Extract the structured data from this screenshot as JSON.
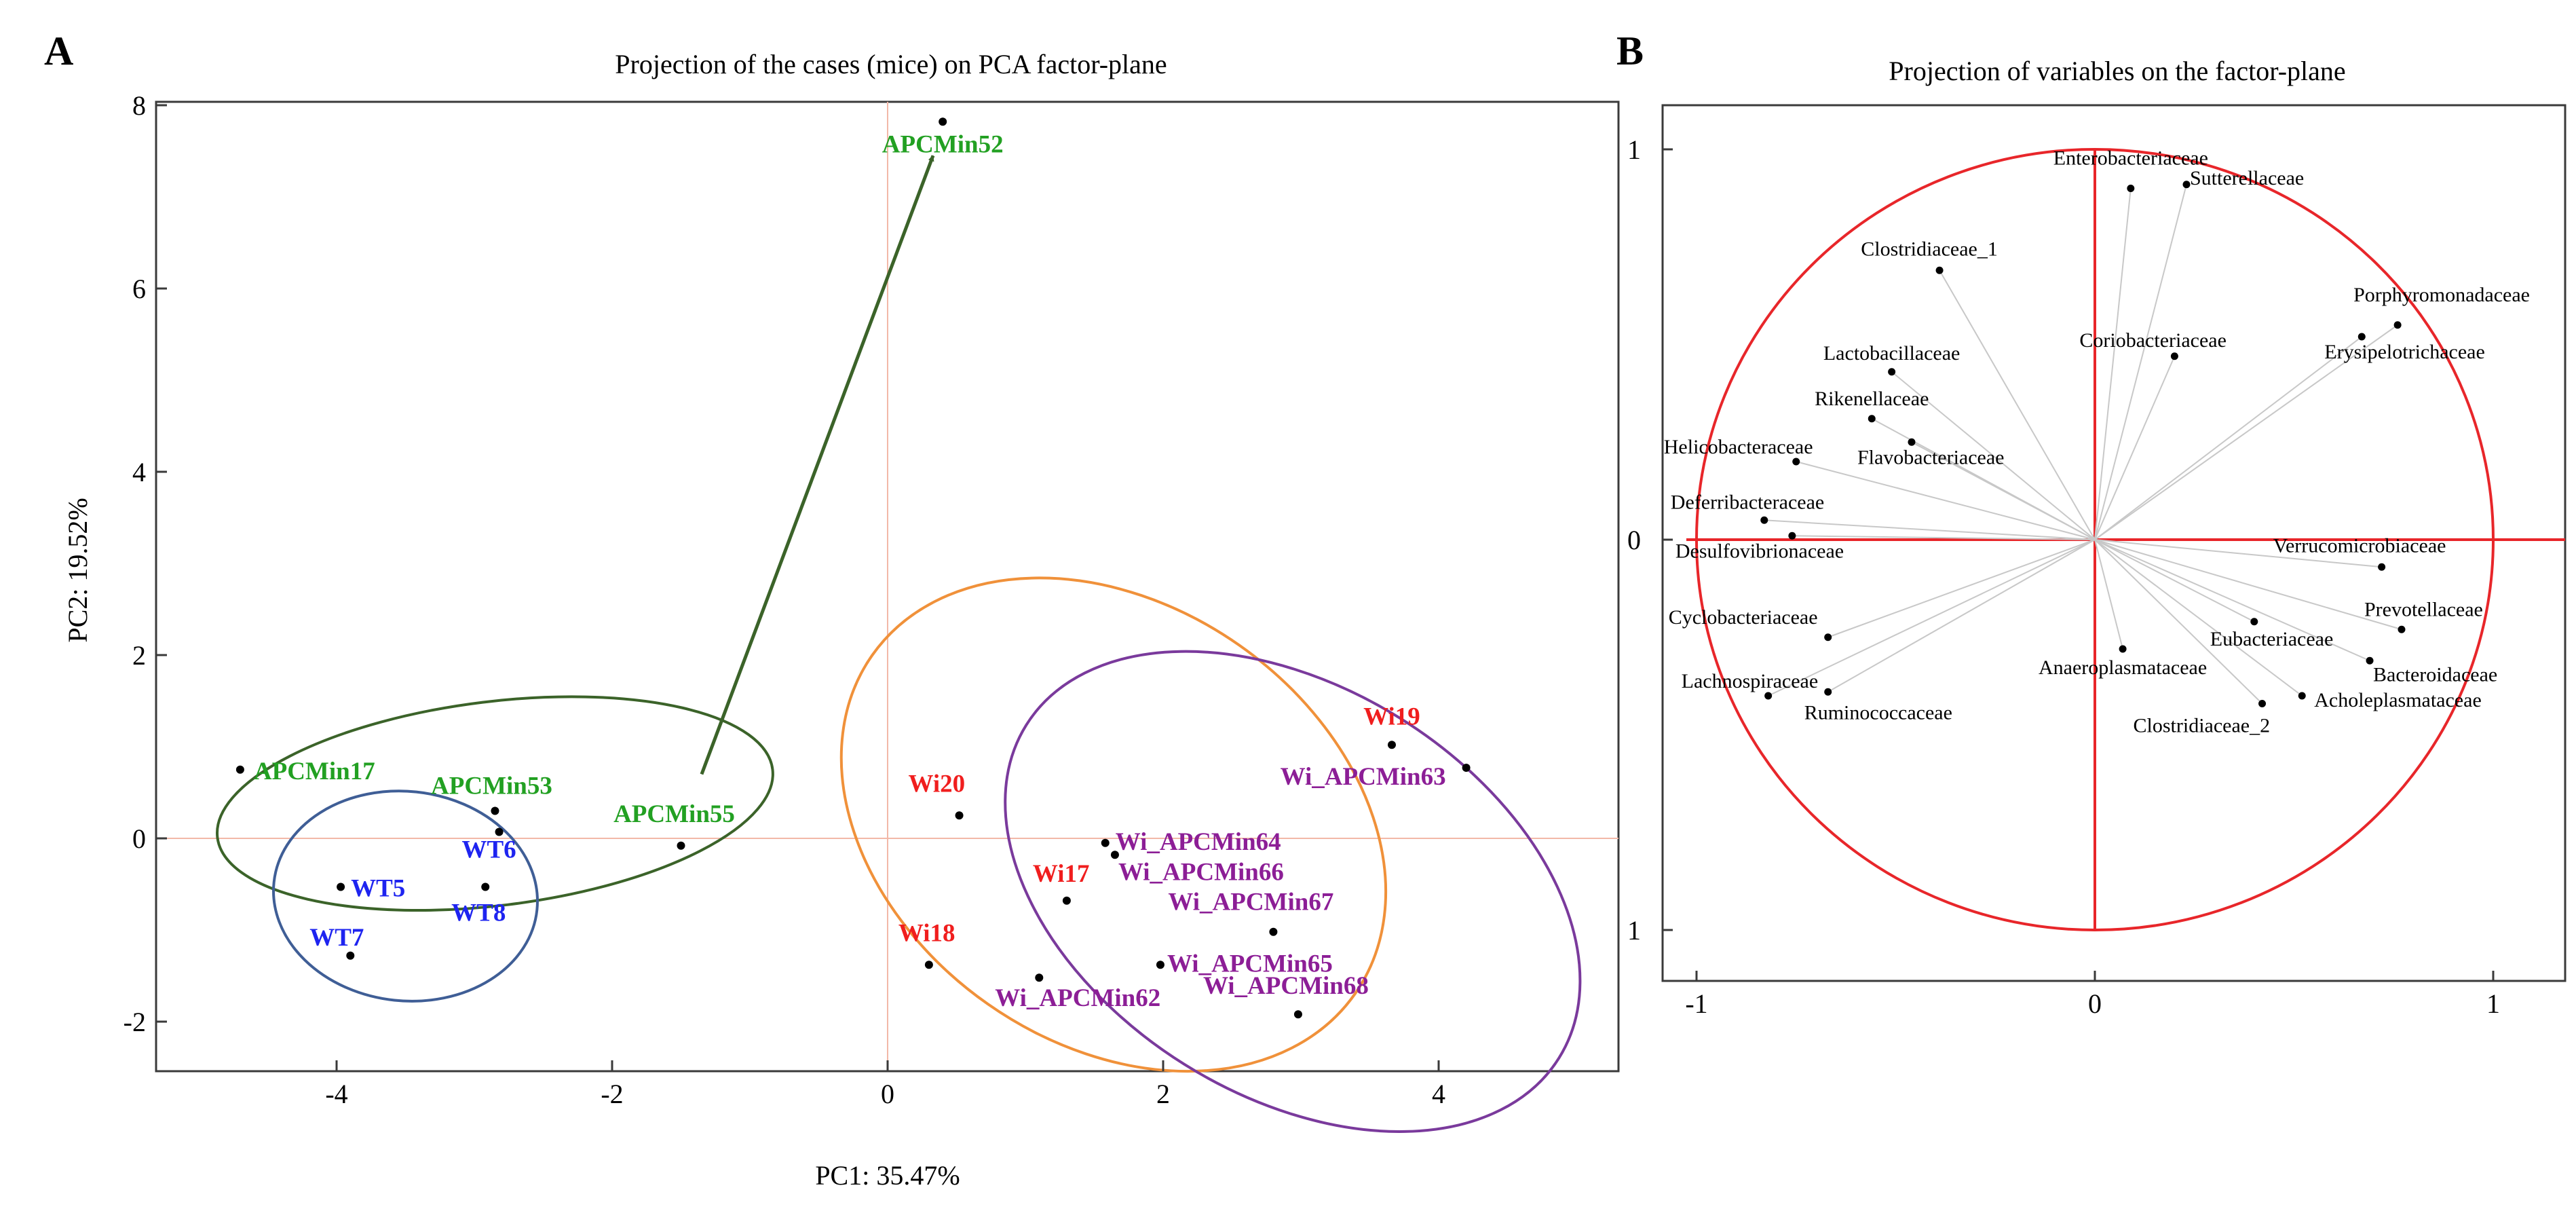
{
  "chart_data": [
    {
      "panel_label": "A",
      "type": "scatter",
      "title": "Projection of the cases (mice) on PCA factor-plane",
      "xlabel": "PC1: 35.47%",
      "ylabel": "PC2: 19.52%",
      "xlim": [
        -5,
        5
      ],
      "ylim": [
        -2,
        8.3
      ],
      "xticks": [
        -4,
        -2,
        0,
        2,
        4
      ],
      "yticks": [
        -2,
        0,
        2,
        4,
        6,
        8
      ],
      "reference_lines": {
        "x": 0,
        "y": 0
      },
      "series": [
        {
          "name": "APCMin",
          "color": "#22A022",
          "points": [
            {
              "label": "APCMin52",
              "x": 0.4,
              "y": 7.82
            },
            {
              "label": "APCMin17",
              "x": -4.7,
              "y": 0.75
            },
            {
              "label": "APCMin53",
              "x": -2.85,
              "y": 0.3
            },
            {
              "label": "APCMin55",
              "x": -1.5,
              "y": -0.08
            }
          ]
        },
        {
          "name": "WT",
          "color": "#1E24F0",
          "points": [
            {
              "label": "WT6",
              "x": -2.82,
              "y": 0.07
            },
            {
              "label": "WT5",
              "x": -3.97,
              "y": -0.53
            },
            {
              "label": "WT8",
              "x": -2.92,
              "y": -0.53
            },
            {
              "label": "WT7",
              "x": -3.9,
              "y": -1.28
            }
          ]
        },
        {
          "name": "Wi",
          "color": "#F01E1E",
          "points": [
            {
              "label": "Wi19",
              "x": 3.66,
              "y": 1.02
            },
            {
              "label": "Wi20",
              "x": 0.52,
              "y": 0.25
            },
            {
              "label": "Wi17",
              "x": 1.3,
              "y": -0.68
            },
            {
              "label": "Wi18",
              "x": 0.3,
              "y": -1.38
            }
          ]
        },
        {
          "name": "Wi_APCMin",
          "color": "#8C1E96",
          "points": [
            {
              "label": "Wi_APCMin63",
              "x": 4.2,
              "y": 0.77
            },
            {
              "label": "Wi_APCMin64",
              "x": 1.58,
              "y": -0.05
            },
            {
              "label": "Wi_APCMin66",
              "x": 1.65,
              "y": -0.18
            },
            {
              "label": "Wi_APCMin67",
              "x": 2.8,
              "y": -1.02
            },
            {
              "label": "Wi_APCMin65",
              "x": 1.98,
              "y": -1.38
            },
            {
              "label": "Wi_APCMin62",
              "x": 1.1,
              "y": -1.52
            },
            {
              "label": "Wi_APCMin68",
              "x": 2.98,
              "y": -1.92
            }
          ]
        }
      ],
      "ellipses": [
        {
          "group": "APCMin",
          "color": "#3B6329",
          "cx": -2.85,
          "cy": 0.38,
          "rx": 2.03,
          "ry": 0.74,
          "angle_deg": -7
        },
        {
          "group": "WT",
          "color": "#3F5E96",
          "cx": -3.5,
          "cy": -0.63,
          "rx": 0.96,
          "ry": 0.76,
          "angle_deg": 6
        },
        {
          "group": "Wi",
          "color": "#F0913A",
          "cx": 1.64,
          "cy": 0.15,
          "rx": 2.14,
          "ry": 1.59,
          "angle_deg": 35
        },
        {
          "group": "Wi_APCMin",
          "color": "#7A3A9C",
          "cx": 2.94,
          "cy": -0.58,
          "rx": 2.28,
          "ry": 1.48,
          "angle_deg": 32
        }
      ],
      "arrow": {
        "from": [
          -1.35,
          0.7
        ],
        "to": [
          0.33,
          7.45
        ],
        "color": "#3B6329"
      }
    },
    {
      "panel_label": "B",
      "type": "scatter",
      "title": "Projection of variables on the factor-plane",
      "xlim": [
        -1.1,
        1.1
      ],
      "ylim": [
        -1.12,
        1.12
      ],
      "xticks": [
        -1,
        0,
        1
      ],
      "yticks": [
        1,
        0,
        -1
      ],
      "ytick_labels": [
        "1",
        "0",
        "1"
      ],
      "unit_circle": true,
      "points": [
        {
          "label": "Enterobacteriaceae",
          "x": 0.09,
          "y": 0.9
        },
        {
          "label": "Sutterellaceae",
          "x": 0.23,
          "y": 0.91
        },
        {
          "label": "Clostridiaceae_1",
          "x": -0.39,
          "y": 0.69
        },
        {
          "label": "Porphyromonadaceae",
          "x": 0.76,
          "y": 0.55
        },
        {
          "label": "Erysipelotrichaceae",
          "x": 0.67,
          "y": 0.52
        },
        {
          "label": "Coriobacteriaceae",
          "x": 0.2,
          "y": 0.47
        },
        {
          "label": "Lactobacillaceae",
          "x": -0.51,
          "y": 0.43
        },
        {
          "label": "Rikenellaceae",
          "x": -0.56,
          "y": 0.31
        },
        {
          "label": "Flavobacteriaceae",
          "x": -0.46,
          "y": 0.25
        },
        {
          "label": "Helicobacteraceae",
          "x": -0.75,
          "y": 0.2
        },
        {
          "label": "Deferribacteraceae",
          "x": -0.83,
          "y": 0.05
        },
        {
          "label": "Desulfovibrionaceae",
          "x": -0.76,
          "y": 0.01
        },
        {
          "label": "Verrucomicrobiaceae",
          "x": 0.72,
          "y": -0.07
        },
        {
          "label": "Prevotellaceae",
          "x": 0.77,
          "y": -0.23
        },
        {
          "label": "Eubacteriaceae",
          "x": 0.4,
          "y": -0.21
        },
        {
          "label": "Cyclobacteriaceae",
          "x": -0.67,
          "y": -0.25
        },
        {
          "label": "Anaeroplasmataceae",
          "x": 0.07,
          "y": -0.28
        },
        {
          "label": "Bacteroidaceae",
          "x": 0.69,
          "y": -0.31
        },
        {
          "label": "Lachnospiraceae",
          "x": -0.82,
          "y": -0.4
        },
        {
          "label": "Ruminococcaceae",
          "x": -0.67,
          "y": -0.39
        },
        {
          "label": "Acholeplasmataceae",
          "x": 0.52,
          "y": -0.4
        },
        {
          "label": "Clostridiaceae_2",
          "x": 0.42,
          "y": -0.42
        }
      ]
    }
  ]
}
